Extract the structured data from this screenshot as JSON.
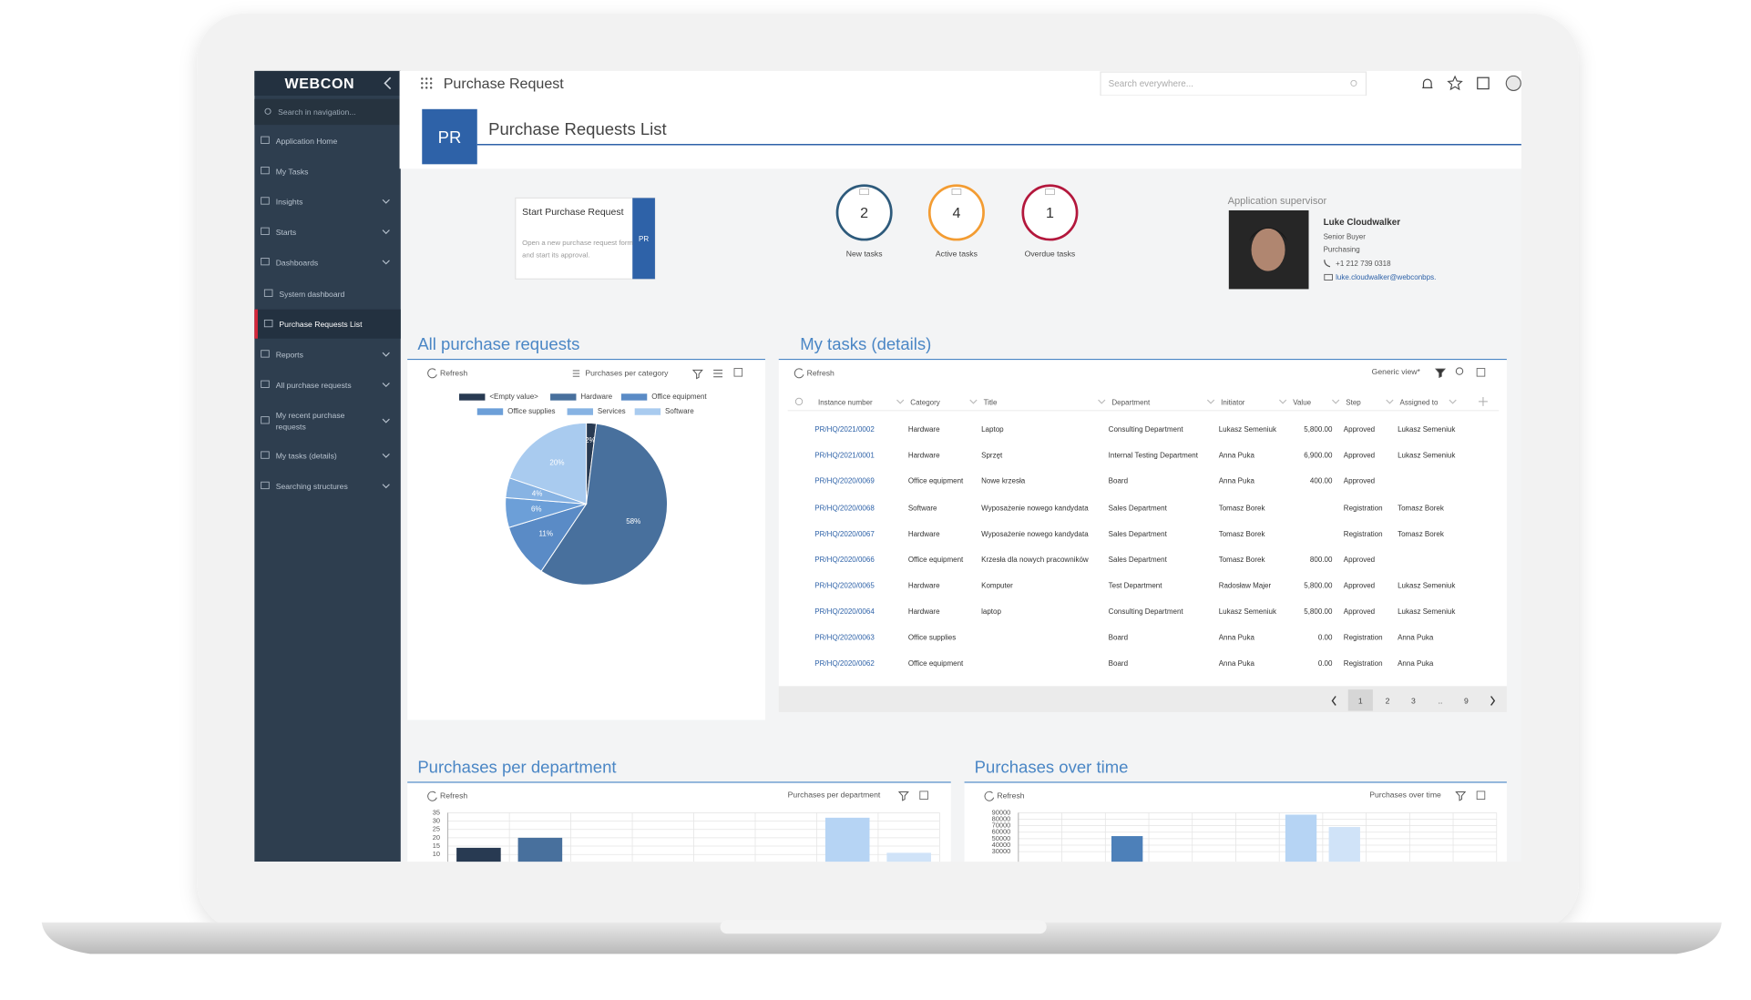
{
  "app": {
    "logo": "WEBCON",
    "name": "Purchase Request",
    "search_placeholder": "Search everywhere...",
    "page_code": "PR",
    "page_title": "Purchase Requests List"
  },
  "nav": {
    "search": "Search in navigation...",
    "items": [
      "Application Home",
      "My Tasks",
      "Insights",
      "Starts",
      "Dashboards",
      "System dashboard",
      "Purchase Requests List",
      "Reports",
      "All purchase requests",
      "My recent purchase requests",
      "My tasks (details)",
      "Searching structures"
    ]
  },
  "start_card": {
    "title": "Start Purchase Request",
    "description": "Open a new purchase request form and start its approval.",
    "badge": "PR"
  },
  "task_counters": [
    {
      "value": 2,
      "label": "New tasks"
    },
    {
      "value": 4,
      "label": "Active tasks"
    },
    {
      "value": 1,
      "label": "Overdue tasks"
    }
  ],
  "supervisor": {
    "heading": "Application supervisor",
    "name": "Luke Cloudwalker",
    "position": "Senior Buyer",
    "department": "Purchasing",
    "phone": "+1 212 739 0318",
    "email": "luke.cloudwalker@webconbps."
  },
  "toolbar": {
    "refresh": "Refresh",
    "pie_view": "Purchases per category",
    "tasks_view": "Generic view*"
  },
  "tasks": {
    "title": "My tasks (details)",
    "columns": [
      "Instance number",
      "Category",
      "Title",
      "Department",
      "Initiator",
      "Value",
      "Step",
      "Assigned to"
    ],
    "rows": [
      [
        "PR/HQ/2021/0002",
        "Hardware",
        "Laptop",
        "Consulting Department",
        "Lukasz Semeniuk",
        "5,800.00",
        "Approved",
        "Lukasz Semeniuk"
      ],
      [
        "PR/HQ/2021/0001",
        "Hardware",
        "Sprzęt",
        "Internal Testing Department",
        "Anna Puka",
        "6,900.00",
        "Approved",
        "Lukasz Semeniuk"
      ],
      [
        "PR/HQ/2020/0069",
        "Office equipment",
        "Nowe krzesła",
        "Board",
        "Anna Puka",
        "400.00",
        "Approved",
        null
      ],
      [
        "PR/HQ/2020/0068",
        "Software",
        "Wyposażenie nowego kandydata",
        "Sales Department",
        "Tomasz Borek",
        null,
        "Registration",
        "Tomasz Borek"
      ],
      [
        "PR/HQ/2020/0067",
        "Hardware",
        "Wyposażenie nowego kandydata",
        "Sales Department",
        "Tomasz Borek",
        null,
        "Registration",
        "Tomasz Borek"
      ],
      [
        "PR/HQ/2020/0066",
        "Office equipment",
        "Krzesła dla nowych pracowników",
        "Sales Department",
        "Tomasz Borek",
        "800.00",
        "Approved",
        null
      ],
      [
        "PR/HQ/2020/0065",
        "Hardware",
        "Komputer",
        "Test Department",
        "Radosław Majer",
        "5,800.00",
        "Approved",
        "Lukasz Semeniuk"
      ],
      [
        "PR/HQ/2020/0064",
        "Hardware",
        "laptop",
        "Consulting Department",
        "Lukasz Semeniuk",
        "5,800.00",
        "Approved",
        "Lukasz Semeniuk"
      ],
      [
        "PR/HQ/2020/0063",
        "Office supplies",
        null,
        "Board",
        "Anna Puka",
        "0.00",
        "Registration",
        "Anna Puka"
      ],
      [
        "PR/HQ/2020/0062",
        "Office equipment",
        null,
        "Board",
        "Anna Puka",
        "0.00",
        "Registration",
        "Anna Puka"
      ]
    ],
    "pages": [
      "1",
      "2",
      "3",
      "..",
      "9"
    ]
  },
  "chart_data": [
    {
      "type": "pie",
      "title": "All purchase requests",
      "categories": [
        "<Empty value>",
        "Hardware",
        "Office equipment",
        "Office supplies",
        "Services",
        "Software"
      ],
      "values": [
        2,
        58,
        11,
        6,
        4,
        20
      ],
      "value_labels": [
        "2%",
        "58%",
        "11%",
        "6%",
        "4%",
        "20%"
      ],
      "colors": [
        "#283a52",
        "#48709d",
        "#5a8bc6",
        "#6c9fd8",
        "#87b3e3",
        "#a9cbef"
      ]
    },
    {
      "type": "bar",
      "title": "Purchases per department",
      "values": [
        14,
        20,
        null,
        null,
        null,
        null,
        32,
        11
      ],
      "colors": [
        "#283a52",
        "#48709d",
        null,
        null,
        null,
        null,
        "#b6d4f4",
        "#d0e3f8"
      ],
      "ylim": [
        0,
        35
      ],
      "yticks": [
        10,
        15,
        20,
        25,
        30,
        35
      ],
      "grid": true
    },
    {
      "type": "bar",
      "title": "Purchases over time",
      "values": [
        null,
        null,
        54000,
        null,
        null,
        null,
        87000,
        68000,
        null,
        null,
        null
      ],
      "colors": [
        null,
        null,
        "#4d80b9",
        null,
        null,
        null,
        "#b6d4f4",
        "#d0e3f8",
        null,
        null,
        null
      ],
      "ylim": [
        0,
        90000
      ],
      "yticks": [
        30000,
        40000,
        50000,
        60000,
        70000,
        80000,
        90000
      ],
      "grid": true
    }
  ]
}
